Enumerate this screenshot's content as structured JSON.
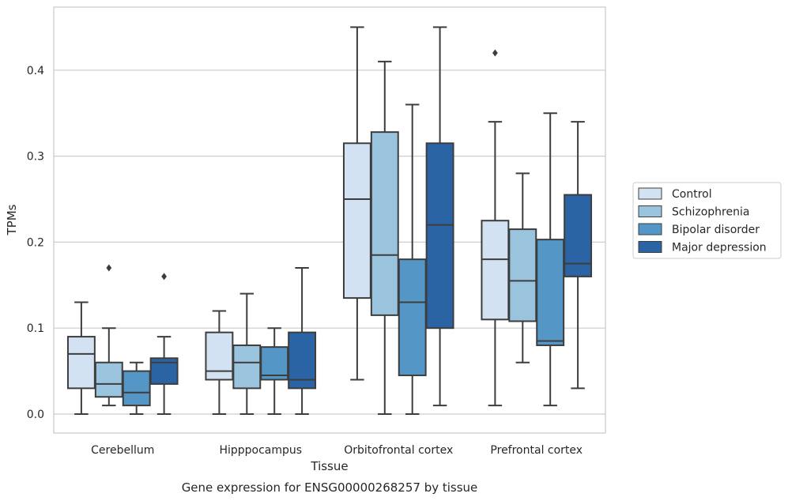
{
  "chart_data": {
    "type": "box",
    "xlabel": "Tissue",
    "ylabel": "TPMs",
    "caption": "Gene expression for ENSG00000268257 by tissue",
    "ylim": [
      -0.022,
      0.475
    ],
    "yticks": [
      "0.0",
      "0.1",
      "0.2",
      "0.3",
      "0.4"
    ],
    "ytick_values": [
      0.0,
      0.1,
      0.2,
      0.3,
      0.4
    ],
    "grid": "horizontal",
    "legend_position": "right",
    "categories": [
      "Cerebellum",
      "Hipppocampus",
      "Orbitofrontal cortex",
      "Prefrontal cortex"
    ],
    "series": [
      {
        "name": "Control",
        "color": "#d2e2f2",
        "boxes": [
          {
            "whislo": 0.0,
            "q1": 0.03,
            "med": 0.07,
            "q3": 0.09,
            "whishi": 0.13,
            "fliers": []
          },
          {
            "whislo": 0.0,
            "q1": 0.04,
            "med": 0.05,
            "q3": 0.095,
            "whishi": 0.12,
            "fliers": []
          },
          {
            "whislo": 0.04,
            "q1": 0.135,
            "med": 0.25,
            "q3": 0.315,
            "whishi": 0.45,
            "fliers": []
          },
          {
            "whislo": 0.01,
            "q1": 0.11,
            "med": 0.18,
            "q3": 0.225,
            "whishi": 0.34,
            "fliers": [
              0.42
            ]
          }
        ]
      },
      {
        "name": "Schizophrenia",
        "color": "#9ac4de",
        "boxes": [
          {
            "whislo": 0.01,
            "q1": 0.02,
            "med": 0.035,
            "q3": 0.06,
            "whishi": 0.1,
            "fliers": [
              0.17
            ]
          },
          {
            "whislo": 0.0,
            "q1": 0.03,
            "med": 0.06,
            "q3": 0.08,
            "whishi": 0.14,
            "fliers": []
          },
          {
            "whislo": 0.0,
            "q1": 0.115,
            "med": 0.185,
            "q3": 0.328,
            "whishi": 0.41,
            "fliers": []
          },
          {
            "whislo": 0.06,
            "q1": 0.108,
            "med": 0.155,
            "q3": 0.215,
            "whishi": 0.28,
            "fliers": []
          }
        ]
      },
      {
        "name": "Bipolar disorder",
        "color": "#5497c7",
        "boxes": [
          {
            "whislo": 0.0,
            "q1": 0.01,
            "med": 0.025,
            "q3": 0.05,
            "whishi": 0.06,
            "fliers": []
          },
          {
            "whislo": 0.0,
            "q1": 0.04,
            "med": 0.045,
            "q3": 0.078,
            "whishi": 0.1,
            "fliers": []
          },
          {
            "whislo": 0.0,
            "q1": 0.045,
            "med": 0.13,
            "q3": 0.18,
            "whishi": 0.36,
            "fliers": []
          },
          {
            "whislo": 0.01,
            "q1": 0.08,
            "med": 0.085,
            "q3": 0.203,
            "whishi": 0.35,
            "fliers": []
          }
        ]
      },
      {
        "name": "Major depression",
        "color": "#2a64a4",
        "boxes": [
          {
            "whislo": 0.0,
            "q1": 0.035,
            "med": 0.06,
            "q3": 0.065,
            "whishi": 0.09,
            "fliers": [
              0.16
            ]
          },
          {
            "whislo": 0.0,
            "q1": 0.03,
            "med": 0.04,
            "q3": 0.095,
            "whishi": 0.17,
            "fliers": []
          },
          {
            "whislo": 0.01,
            "q1": 0.1,
            "med": 0.22,
            "q3": 0.315,
            "whishi": 0.45,
            "fliers": []
          },
          {
            "whislo": 0.03,
            "q1": 0.16,
            "med": 0.175,
            "q3": 0.255,
            "whishi": 0.34,
            "fliers": []
          }
        ]
      }
    ]
  }
}
